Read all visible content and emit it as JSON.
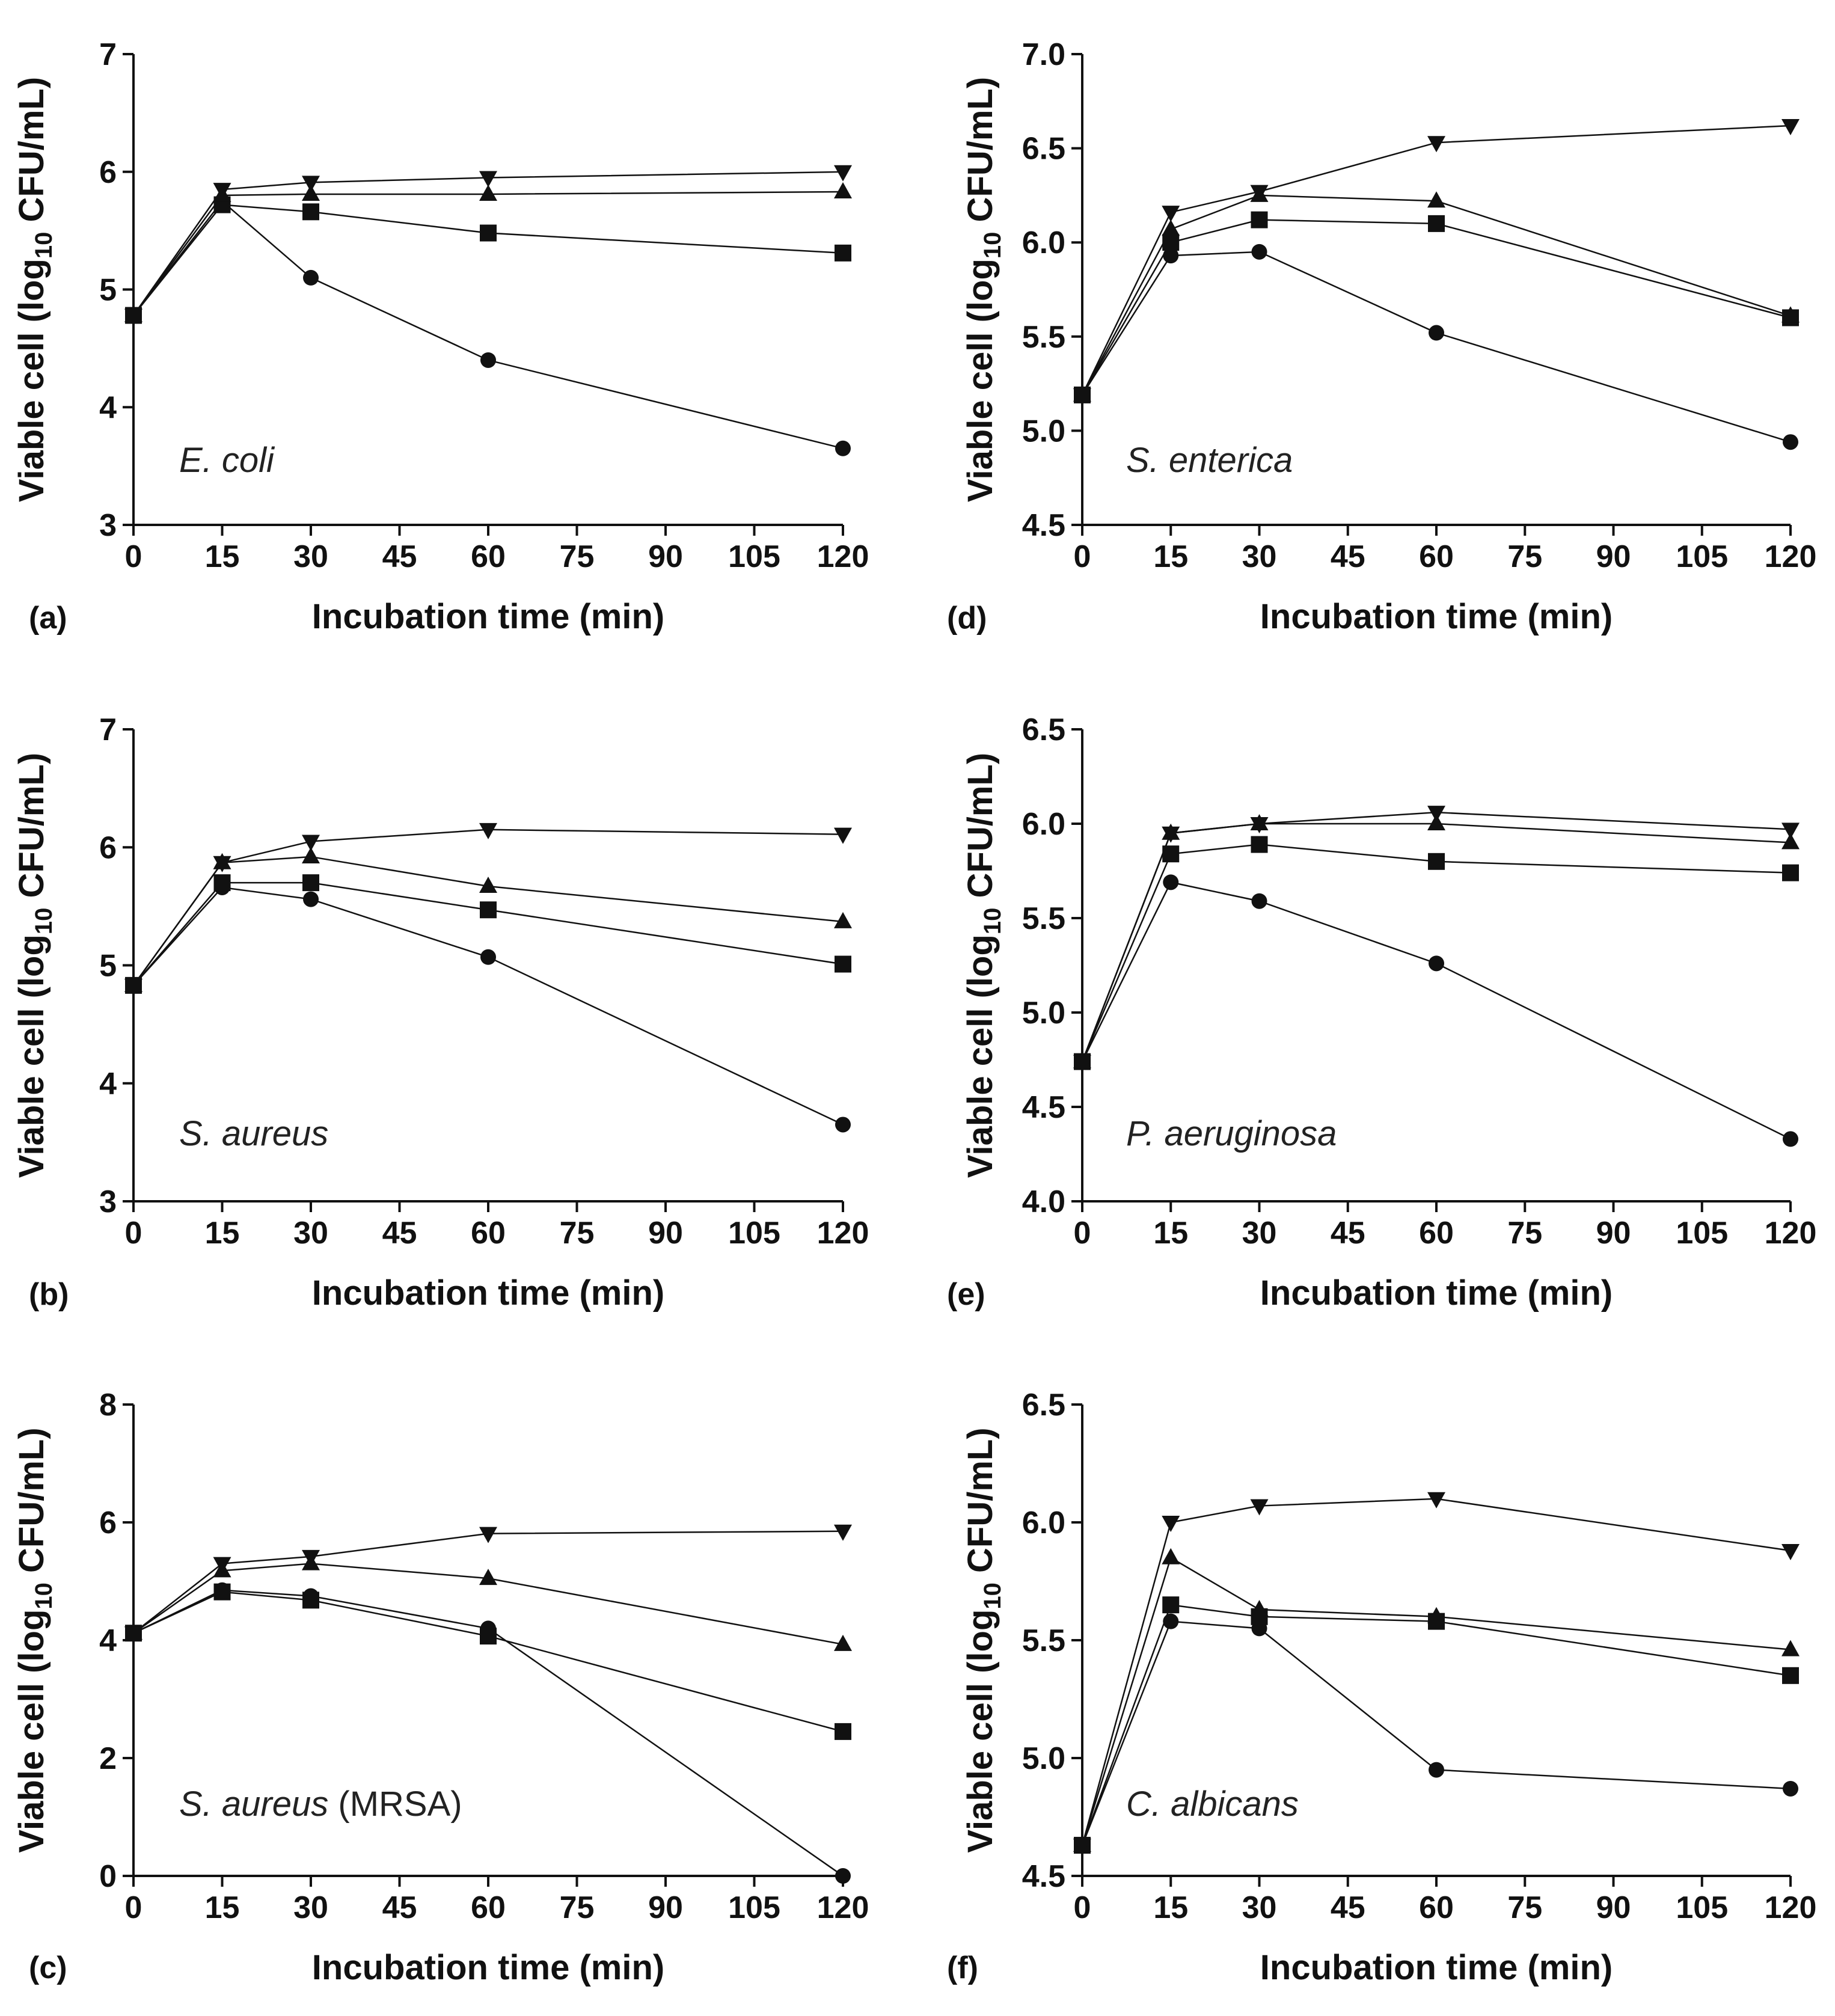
{
  "figure": {
    "ylabel_prefix": "Viable cell (log",
    "ylabel_sub": "10",
    "ylabel_suffix": " CFU/mL)",
    "xlabel": "Incubation time (min)",
    "line_color": "#111111"
  },
  "chart_data": [
    {
      "type": "line",
      "panel_label": "(a)",
      "organism": "E. coli",
      "organism_suffix": "",
      "xlabel": "Incubation time (min)",
      "ylabel": "Viable cell (log10 CFU/mL)",
      "x": [
        0,
        15,
        30,
        60,
        120
      ],
      "xticks": [
        0,
        15,
        30,
        45,
        60,
        75,
        90,
        105,
        120
      ],
      "ylim": [
        3,
        7
      ],
      "yticks": [
        3,
        4,
        5,
        6,
        7
      ],
      "ytick_labels": [
        "3",
        "4",
        "5",
        "6",
        "7"
      ],
      "series": [
        {
          "marker": "circle",
          "values": [
            4.78,
            5.75,
            5.1,
            4.4,
            3.65
          ]
        },
        {
          "marker": "square",
          "values": [
            4.78,
            5.72,
            5.66,
            5.48,
            5.31
          ]
        },
        {
          "marker": "triangle-up",
          "values": [
            4.78,
            5.8,
            5.81,
            5.81,
            5.83
          ]
        },
        {
          "marker": "triangle-down",
          "values": [
            4.78,
            5.85,
            5.91,
            5.95,
            6.0
          ]
        }
      ]
    },
    {
      "type": "line",
      "panel_label": "(d)",
      "organism": "S. enterica",
      "organism_suffix": "",
      "xlabel": "Incubation time (min)",
      "ylabel": "Viable cell (log10 CFU/mL)",
      "x": [
        0,
        15,
        30,
        60,
        120
      ],
      "xticks": [
        0,
        15,
        30,
        45,
        60,
        75,
        90,
        105,
        120
      ],
      "ylim": [
        4.5,
        7.0
      ],
      "yticks": [
        4.5,
        5.0,
        5.5,
        6.0,
        6.5,
        7.0
      ],
      "ytick_labels": [
        "4.5",
        "5.0",
        "5.5",
        "6.0",
        "6.5",
        "7.0"
      ],
      "series": [
        {
          "marker": "circle",
          "values": [
            5.19,
            5.93,
            5.95,
            5.52,
            4.94
          ]
        },
        {
          "marker": "square",
          "values": [
            5.19,
            6.0,
            6.12,
            6.1,
            5.6
          ]
        },
        {
          "marker": "triangle-up",
          "values": [
            5.19,
            6.07,
            6.25,
            6.22,
            5.61
          ]
        },
        {
          "marker": "triangle-down",
          "values": [
            5.19,
            6.16,
            6.27,
            6.53,
            6.62
          ]
        }
      ]
    },
    {
      "type": "line",
      "panel_label": "(b)",
      "organism": "S. aureus",
      "organism_suffix": "",
      "xlabel": "Incubation time (min)",
      "ylabel": "Viable cell (log10 CFU/mL)",
      "x": [
        0,
        15,
        30,
        60,
        120
      ],
      "xticks": [
        0,
        15,
        30,
        45,
        60,
        75,
        90,
        105,
        120
      ],
      "ylim": [
        3,
        7
      ],
      "yticks": [
        3,
        4,
        5,
        6,
        7
      ],
      "ytick_labels": [
        "3",
        "4",
        "5",
        "6",
        "7"
      ],
      "series": [
        {
          "marker": "circle",
          "values": [
            4.83,
            5.66,
            5.56,
            5.07,
            3.65
          ]
        },
        {
          "marker": "square",
          "values": [
            4.83,
            5.7,
            5.7,
            5.47,
            5.01
          ]
        },
        {
          "marker": "triangle-up",
          "values": [
            4.83,
            5.87,
            5.92,
            5.67,
            5.37
          ]
        },
        {
          "marker": "triangle-down",
          "values": [
            4.83,
            5.87,
            6.05,
            6.15,
            6.11
          ]
        }
      ]
    },
    {
      "type": "line",
      "panel_label": "(e)",
      "organism": "P. aeruginosa",
      "organism_suffix": "",
      "xlabel": "Incubation time (min)",
      "ylabel": "Viable cell (log10 CFU/mL)",
      "x": [
        0,
        15,
        30,
        60,
        120
      ],
      "xticks": [
        0,
        15,
        30,
        45,
        60,
        75,
        90,
        105,
        120
      ],
      "ylim": [
        4.0,
        6.5
      ],
      "yticks": [
        4.0,
        4.5,
        5.0,
        5.5,
        6.0,
        6.5
      ],
      "ytick_labels": [
        "4.0",
        "4.5",
        "5.0",
        "5.5",
        "6.0",
        "6.5"
      ],
      "series": [
        {
          "marker": "circle",
          "values": [
            4.74,
            5.69,
            5.59,
            5.26,
            4.33
          ]
        },
        {
          "marker": "square",
          "values": [
            4.74,
            5.84,
            5.89,
            5.8,
            5.74
          ]
        },
        {
          "marker": "triangle-up",
          "values": [
            4.74,
            5.95,
            6.0,
            6.0,
            5.9
          ]
        },
        {
          "marker": "triangle-down",
          "values": [
            4.74,
            5.95,
            6.0,
            6.06,
            5.97
          ]
        }
      ]
    },
    {
      "type": "line",
      "panel_label": "(c)",
      "organism": "S. aureus",
      "organism_suffix": " (MRSA)",
      "xlabel": "Incubation time (min)",
      "ylabel": "Viable cell (log10 CFU/mL)",
      "x": [
        0,
        15,
        30,
        60,
        120
      ],
      "xticks": [
        0,
        15,
        30,
        45,
        60,
        75,
        90,
        105,
        120
      ],
      "ylim": [
        0,
        8
      ],
      "yticks": [
        0,
        2,
        4,
        6,
        8
      ],
      "ytick_labels": [
        "0",
        "2",
        "4",
        "6",
        "8"
      ],
      "series": [
        {
          "marker": "circle",
          "values": [
            4.12,
            4.85,
            4.75,
            4.2,
            0.0
          ]
        },
        {
          "marker": "square",
          "values": [
            4.12,
            4.82,
            4.68,
            4.07,
            2.45
          ]
        },
        {
          "marker": "triangle-up",
          "values": [
            4.12,
            5.18,
            5.3,
            5.05,
            3.93
          ]
        },
        {
          "marker": "triangle-down",
          "values": [
            4.12,
            5.3,
            5.42,
            5.81,
            5.85
          ]
        }
      ]
    },
    {
      "type": "line",
      "panel_label": "(f)",
      "organism": "C. albicans",
      "organism_suffix": "",
      "xlabel": "Incubation time (min)",
      "ylabel": "Viable cell (log10 CFU/mL)",
      "x": [
        0,
        15,
        30,
        60,
        120
      ],
      "xticks": [
        0,
        15,
        30,
        45,
        60,
        75,
        90,
        105,
        120
      ],
      "ylim": [
        4.5,
        6.5
      ],
      "yticks": [
        4.5,
        5.0,
        5.5,
        6.0,
        6.5
      ],
      "ytick_labels": [
        "4.5",
        "5.0",
        "5.5",
        "6.0",
        "6.5"
      ],
      "series": [
        {
          "marker": "circle",
          "values": [
            4.63,
            5.58,
            5.55,
            4.95,
            4.87
          ]
        },
        {
          "marker": "square",
          "values": [
            4.63,
            5.65,
            5.6,
            5.58,
            5.35
          ]
        },
        {
          "marker": "triangle-up",
          "values": [
            4.63,
            5.85,
            5.63,
            5.6,
            5.46
          ]
        },
        {
          "marker": "triangle-down",
          "values": [
            4.63,
            6.0,
            6.07,
            6.1,
            5.88
          ]
        }
      ]
    }
  ]
}
